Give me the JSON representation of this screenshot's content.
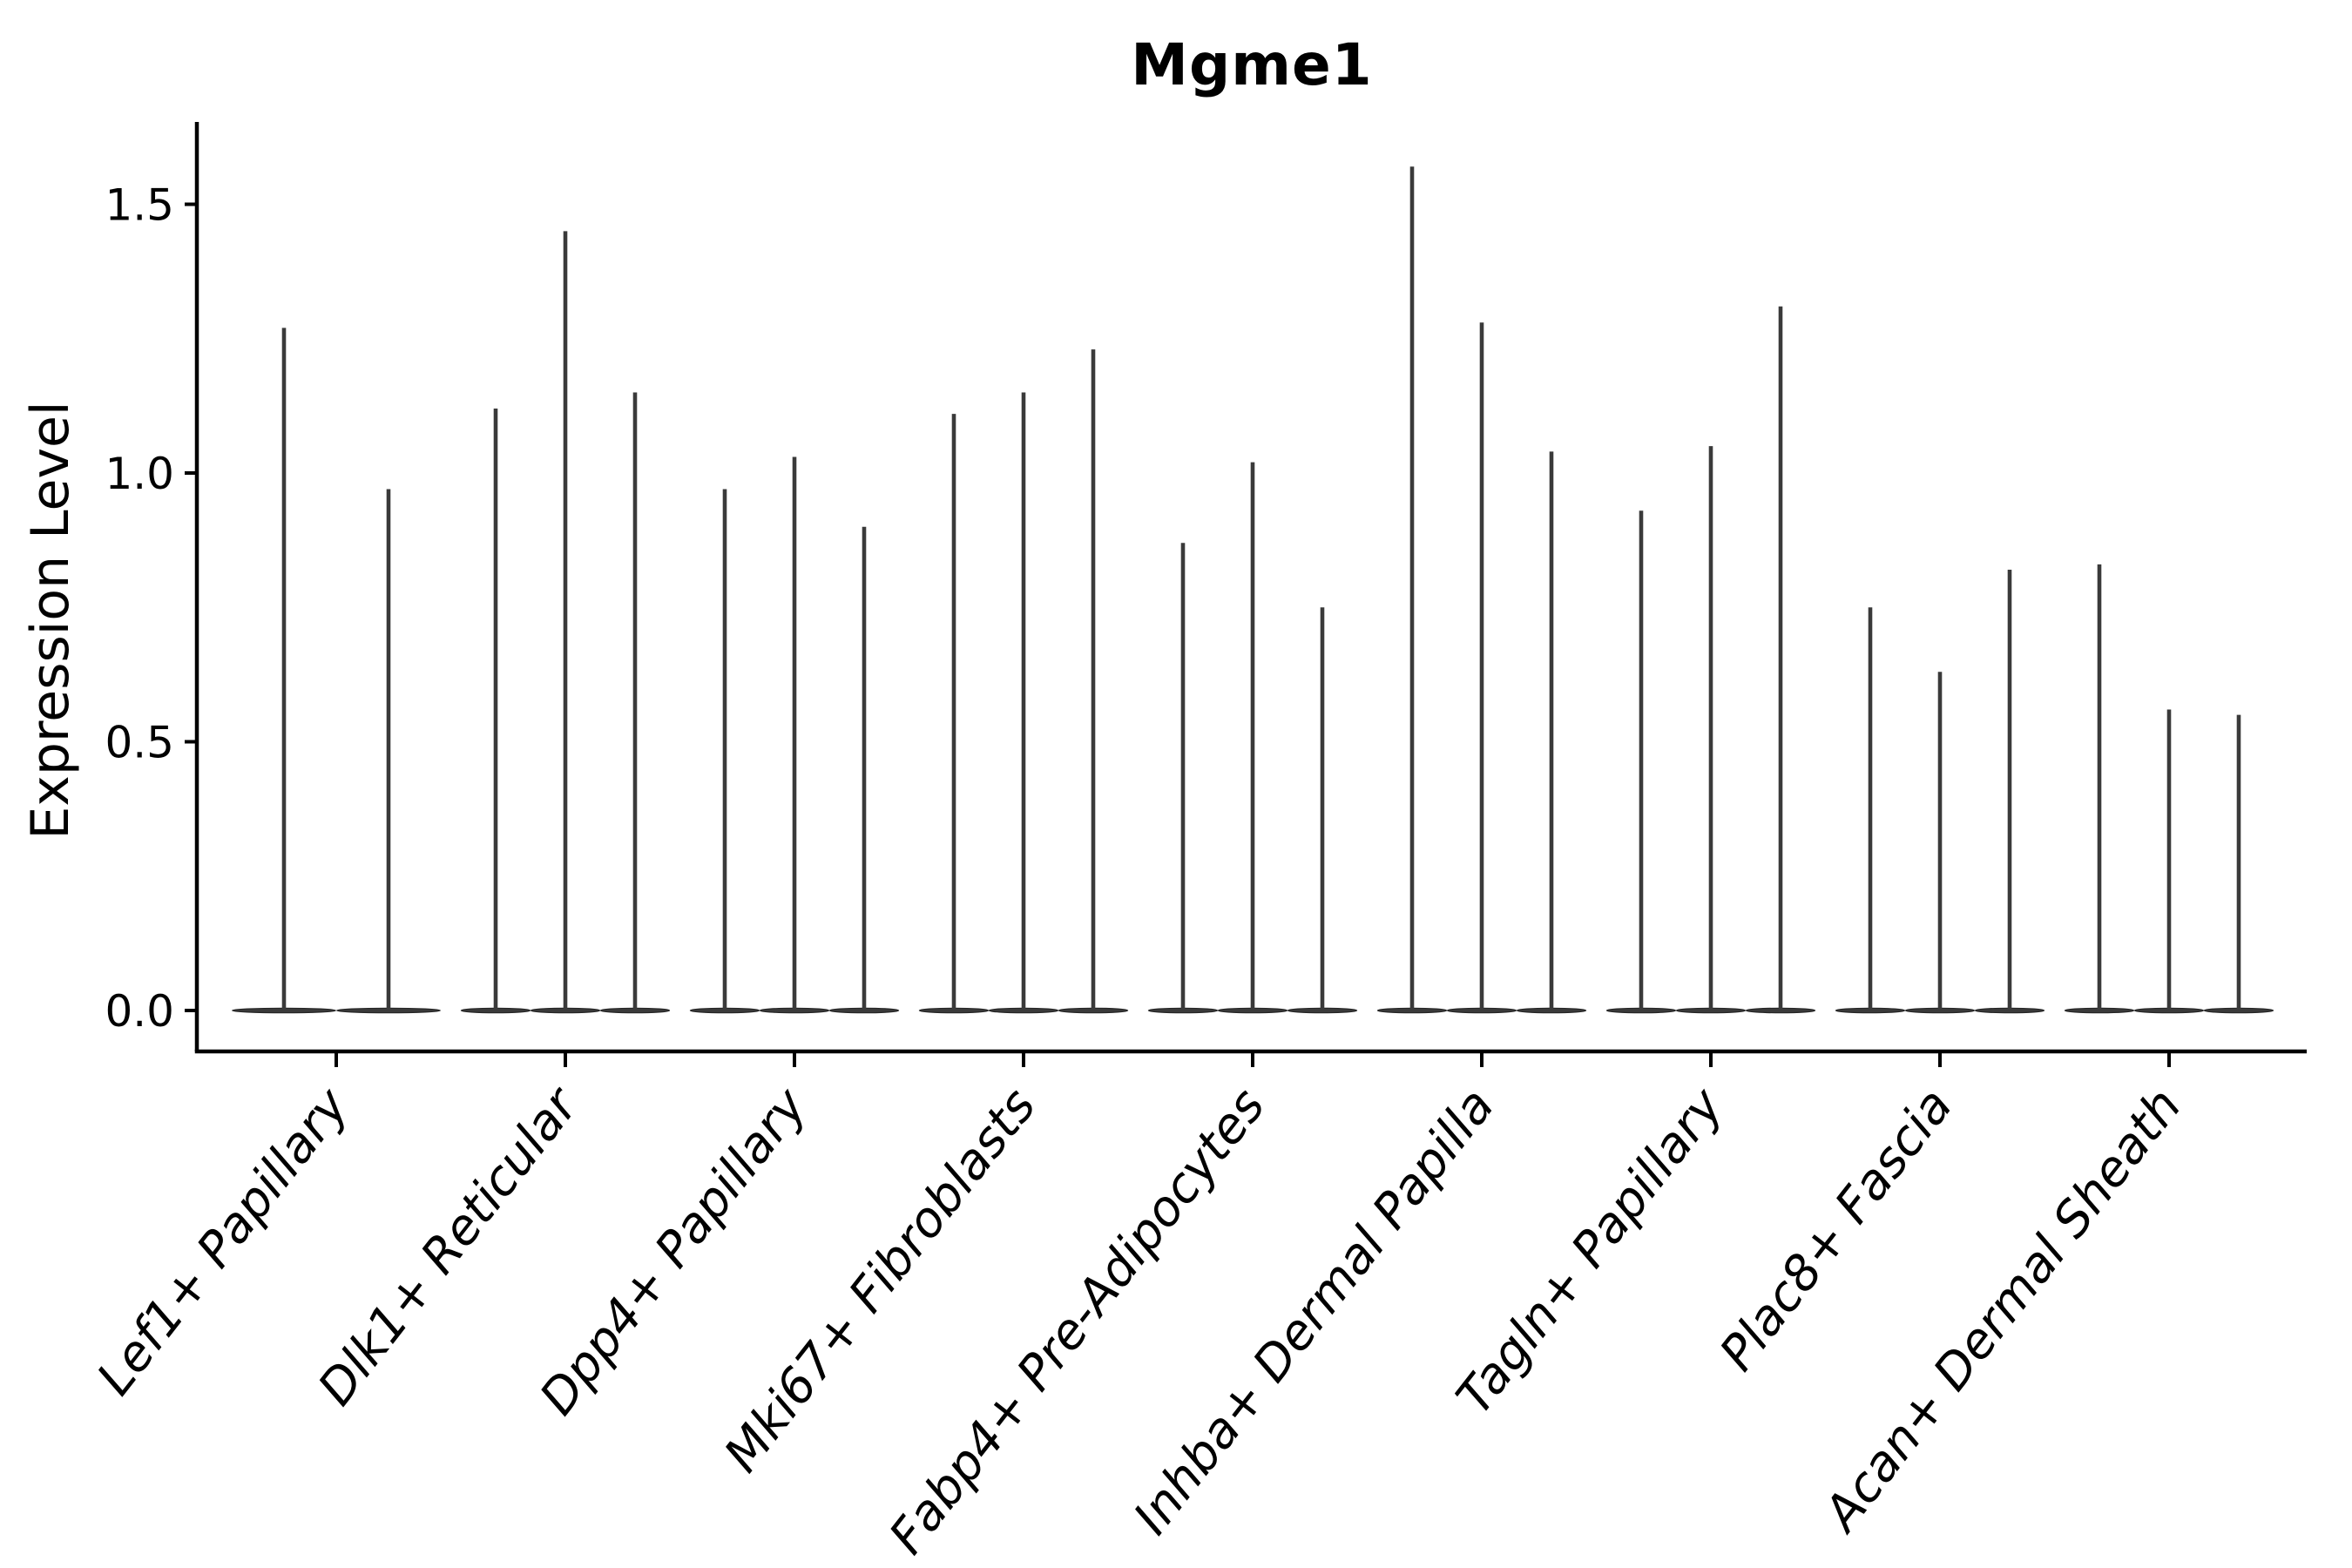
{
  "chart_data": {
    "type": "violin",
    "title": "Mgme1",
    "ylabel": "Expression Level",
    "xlabel": "",
    "categories": [
      "Lef1+ Papillary",
      "Dlk1+ Reticular",
      "Dpp4+ Papillary",
      "Mki67+ Fibroblasts",
      "Fabp4+ Pre-Adipocytes",
      "Inhba+ Dermal Papilla",
      "Tagln+ Papillary",
      "Plac8+ Fascia",
      "Acan+ Dermal Sheath"
    ],
    "groups": [
      {
        "label": "Lef1+ Papillary",
        "violin_peaks": [
          1.27,
          0.97
        ]
      },
      {
        "label": "Dlk1+ Reticular",
        "violin_peaks": [
          1.12,
          1.45,
          1.15
        ]
      },
      {
        "label": "Dpp4+ Papillary",
        "violin_peaks": [
          0.97,
          1.03,
          0.9
        ]
      },
      {
        "label": "Mki67+ Fibroblasts",
        "violin_peaks": [
          1.11,
          1.15,
          1.23
        ]
      },
      {
        "label": "Fabp4+ Pre-Adipocytes",
        "violin_peaks": [
          0.87,
          1.02,
          0.75
        ]
      },
      {
        "label": "Inhba+ Dermal Papilla",
        "violin_peaks": [
          1.57,
          1.28,
          1.04
        ]
      },
      {
        "label": "Tagln+ Papillary",
        "violin_peaks": [
          0.93,
          1.05,
          1.31
        ]
      },
      {
        "label": "Plac8+ Fascia",
        "violin_peaks": [
          0.75,
          0.63,
          0.82
        ]
      },
      {
        "label": "Acan+ Dermal Sheath",
        "violin_peaks": [
          0.83,
          0.56,
          0.55
        ]
      }
    ],
    "yticks": [
      0.0,
      0.5,
      1.0,
      1.5
    ],
    "ytick_labels": [
      "0.0",
      "0.5",
      "1.0",
      "1.5"
    ],
    "ylim": [
      -0.08,
      1.65
    ],
    "description": "Each violin collapses to a wide flat base at 0 expression with a thin spike up to its peak value; violins grouped per cell type.",
    "legend": "none",
    "grid": "off",
    "style": {
      "violin_fill": "#3a3a3a",
      "violin_edge": "#262626",
      "axis_color": "#000000",
      "background": "#ffffff"
    }
  }
}
